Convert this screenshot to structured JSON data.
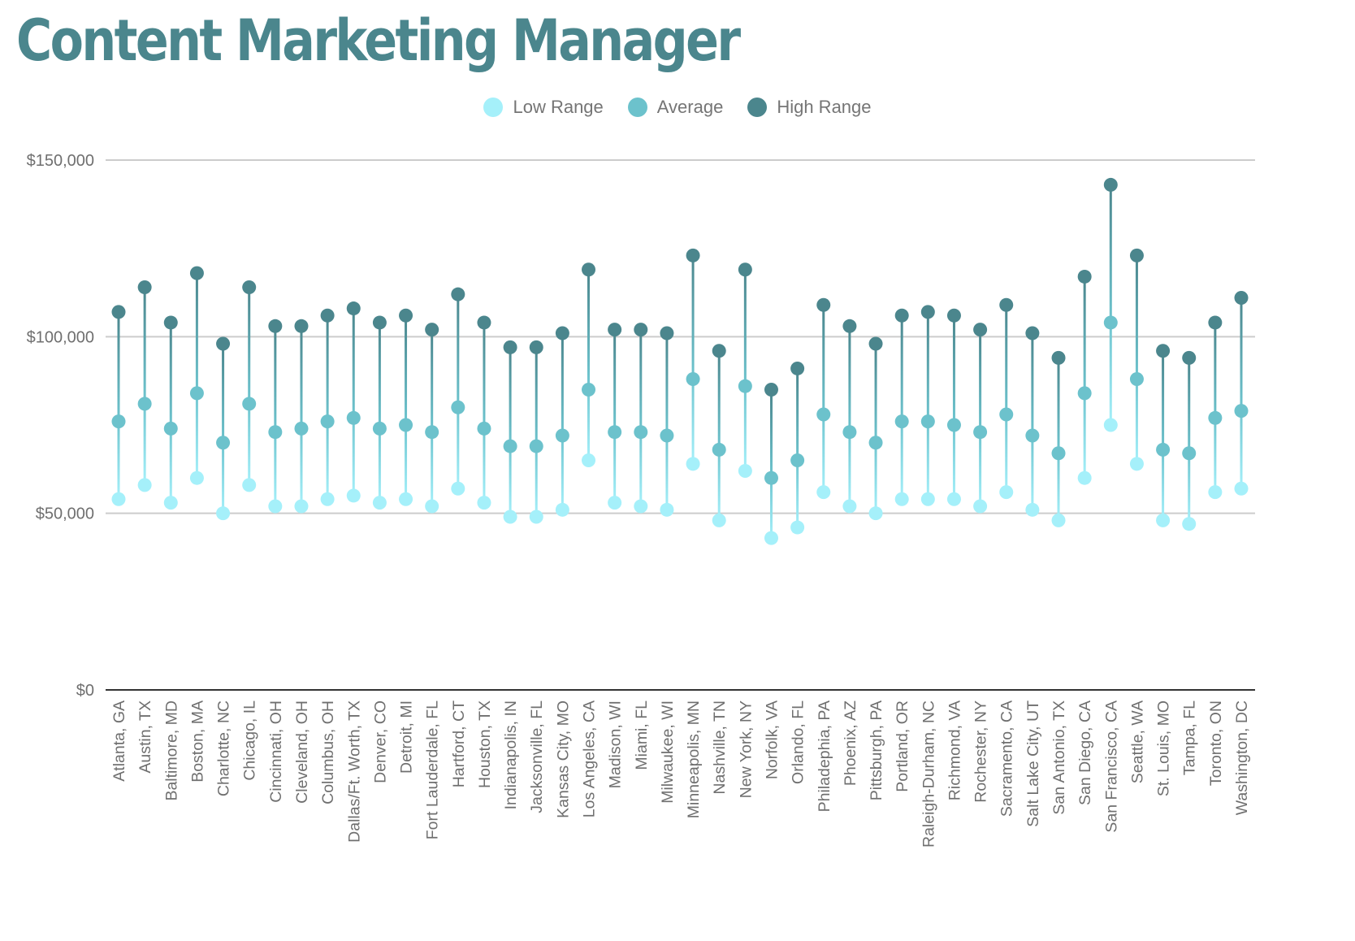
{
  "title": "Content Marketing Manager",
  "colors": {
    "low": "#a5f0fa",
    "avg": "#6cc2cc",
    "high": "#4b868d",
    "title": "#4b868d",
    "grid": "#cccccc",
    "axis": "#333333"
  },
  "legend": [
    {
      "label": "Low Range",
      "color": "#a5f0fa"
    },
    {
      "label": "Average",
      "color": "#6cc2cc"
    },
    {
      "label": "High Range",
      "color": "#4b868d"
    }
  ],
  "chart_data": {
    "type": "scatter",
    "title": "Content Marketing Manager",
    "ylim": [
      0,
      150000
    ],
    "yticks": [
      0,
      50000,
      100000,
      150000
    ],
    "ytick_labels": [
      "$0",
      "$50,000",
      "$100,000",
      "$150,000"
    ],
    "grid": true,
    "legend_position": "top-center",
    "categories": [
      "Atlanta, GA",
      "Austin, TX",
      "Baltimore, MD",
      "Boston, MA",
      "Charlotte, NC",
      "Chicago, IL",
      "Cincinnati, OH",
      "Cleveland, OH",
      "Columbus, OH",
      "Dallas/Ft. Worth, TX",
      "Denver, CO",
      "Detroit, MI",
      "Fort Lauderdale, FL",
      "Hartford, CT",
      "Houston, TX",
      "Indianapolis, IN",
      "Jacksonville, FL",
      "Kansas City, MO",
      "Los Angeles, CA",
      "Madison, WI",
      "Miami, FL",
      "Milwaukee, WI",
      "Minneapolis, MN",
      "Nashville, TN",
      "New York, NY",
      "Norfolk, VA",
      "Orlando, FL",
      "Philadephia, PA",
      "Phoenix, AZ",
      "Pittsburgh, PA",
      "Portland, OR",
      "Raleigh-Durham, NC",
      "Richmond, VA",
      "Rochester, NY",
      "Sacramento, CA",
      "Salt Lake City, UT",
      "San Antonio, TX",
      "San Diego, CA",
      "San Francisco, CA",
      "Seattle, WA",
      "St. Louis, MO",
      "Tampa, FL",
      "Toronto, ON",
      "Washington, DC"
    ],
    "series": [
      {
        "name": "Low Range",
        "values": [
          54000,
          58000,
          53000,
          60000,
          50000,
          58000,
          52000,
          52000,
          54000,
          55000,
          53000,
          54000,
          52000,
          57000,
          53000,
          49000,
          49000,
          51000,
          65000,
          53000,
          52000,
          51000,
          64000,
          48000,
          62000,
          43000,
          46000,
          56000,
          52000,
          50000,
          54000,
          54000,
          54000,
          52000,
          56000,
          51000,
          48000,
          60000,
          75000,
          64000,
          48000,
          47000,
          56000,
          57000
        ]
      },
      {
        "name": "Average",
        "values": [
          76000,
          81000,
          74000,
          84000,
          70000,
          81000,
          73000,
          74000,
          76000,
          77000,
          74000,
          75000,
          73000,
          80000,
          74000,
          69000,
          69000,
          72000,
          85000,
          73000,
          73000,
          72000,
          88000,
          68000,
          86000,
          60000,
          65000,
          78000,
          73000,
          70000,
          76000,
          76000,
          75000,
          73000,
          78000,
          72000,
          67000,
          84000,
          104000,
          88000,
          68000,
          67000,
          77000,
          79000
        ]
      },
      {
        "name": "High Range",
        "values": [
          107000,
          114000,
          104000,
          118000,
          98000,
          114000,
          103000,
          103000,
          106000,
          108000,
          104000,
          106000,
          102000,
          112000,
          104000,
          97000,
          97000,
          101000,
          119000,
          102000,
          102000,
          101000,
          123000,
          96000,
          119000,
          85000,
          91000,
          109000,
          103000,
          98000,
          106000,
          107000,
          106000,
          102000,
          109000,
          101000,
          94000,
          117000,
          143000,
          123000,
          96000,
          94000,
          104000,
          111000
        ]
      }
    ]
  }
}
